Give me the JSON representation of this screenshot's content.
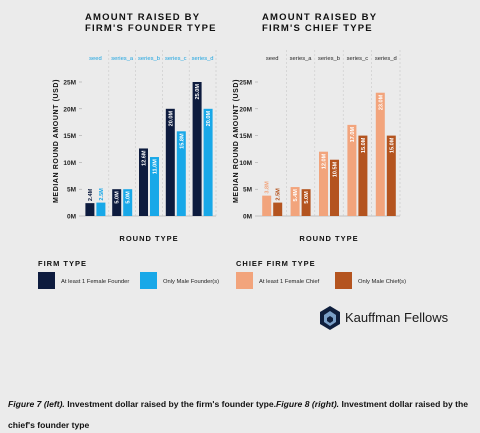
{
  "chart_data": [
    {
      "type": "bar",
      "title": "AMOUNT RAISED BY FIRM'S FOUNDER TYPE",
      "categories": [
        "seed",
        "series_a",
        "series_b",
        "series_c",
        "series_d"
      ],
      "category_color": "#1aa3e0",
      "series": [
        {
          "name": "At least 1 Female Founder",
          "color": "#0d1b3e",
          "values": [
            2.4,
            5.0,
            12.6,
            20.0,
            25.0
          ],
          "value_labels": [
            "2.4M",
            "5.0M",
            "12.6M",
            "20.0M",
            "25.0M"
          ]
        },
        {
          "name": "Only Male Founder(s)",
          "color": "#18a8e8",
          "values": [
            2.5,
            5.0,
            11.0,
            15.8,
            20.0
          ],
          "value_labels": [
            "2.5M",
            "5.0M",
            "11.0M",
            "15.8M",
            "20.0M"
          ]
        }
      ],
      "ylim": [
        0,
        25
      ],
      "yticks": [
        {
          "value": 0,
          "label": "0M"
        },
        {
          "value": 5,
          "label": "5M"
        },
        {
          "value": 10,
          "label": "10M"
        },
        {
          "value": 15,
          "label": "15M"
        },
        {
          "value": 20,
          "label": "20M"
        },
        {
          "value": 25,
          "label": "25M"
        }
      ],
      "ylabel": "MEDIAN ROUND AMOUNT (USD)",
      "xlabel": "ROUND TYPE",
      "legend_title": "FIRM TYPE",
      "grid": false
    },
    {
      "type": "bar",
      "title": "AMOUNT RAISED BY FIRM'S CHIEF TYPE",
      "categories": [
        "seed",
        "series_a",
        "series_b",
        "series_c",
        "series_d"
      ],
      "category_color": "#222222",
      "series": [
        {
          "name": "At least 1 Female Chief",
          "color": "#f2a47c",
          "values": [
            3.8,
            5.4,
            12.0,
            17.0,
            23.0
          ],
          "value_labels": [
            "3.8M",
            "5.4M",
            "12.0M",
            "17.0M",
            "23.0M"
          ]
        },
        {
          "name": "Only Male Chief(s)",
          "color": "#b4541f",
          "values": [
            2.5,
            5.0,
            10.5,
            15.0,
            15.0
          ],
          "value_labels": [
            "2.5M",
            "5.0M",
            "10.5M",
            "15.0M",
            "15.0M"
          ]
        }
      ],
      "ylim": [
        0,
        25
      ],
      "yticks": [
        {
          "value": 0,
          "label": "0M"
        },
        {
          "value": 5,
          "label": "5M"
        },
        {
          "value": 10,
          "label": "10M"
        },
        {
          "value": 15,
          "label": "15M"
        },
        {
          "value": 20,
          "label": "20M"
        },
        {
          "value": 25,
          "label": "25M"
        }
      ],
      "ylabel": "MEDIAN ROUND AMOUNT (USD)",
      "xlabel": "ROUND TYPE",
      "legend_title": "CHIEF FIRM TYPE",
      "grid": false
    }
  ],
  "logo": "Kauffman Fellows",
  "caption": [
    "Figure 7 (left).",
    "Investment dollar raised by the firm's founder type.",
    "Figure 8 (right).",
    "Investment dollar raised by the chief's founder type"
  ]
}
